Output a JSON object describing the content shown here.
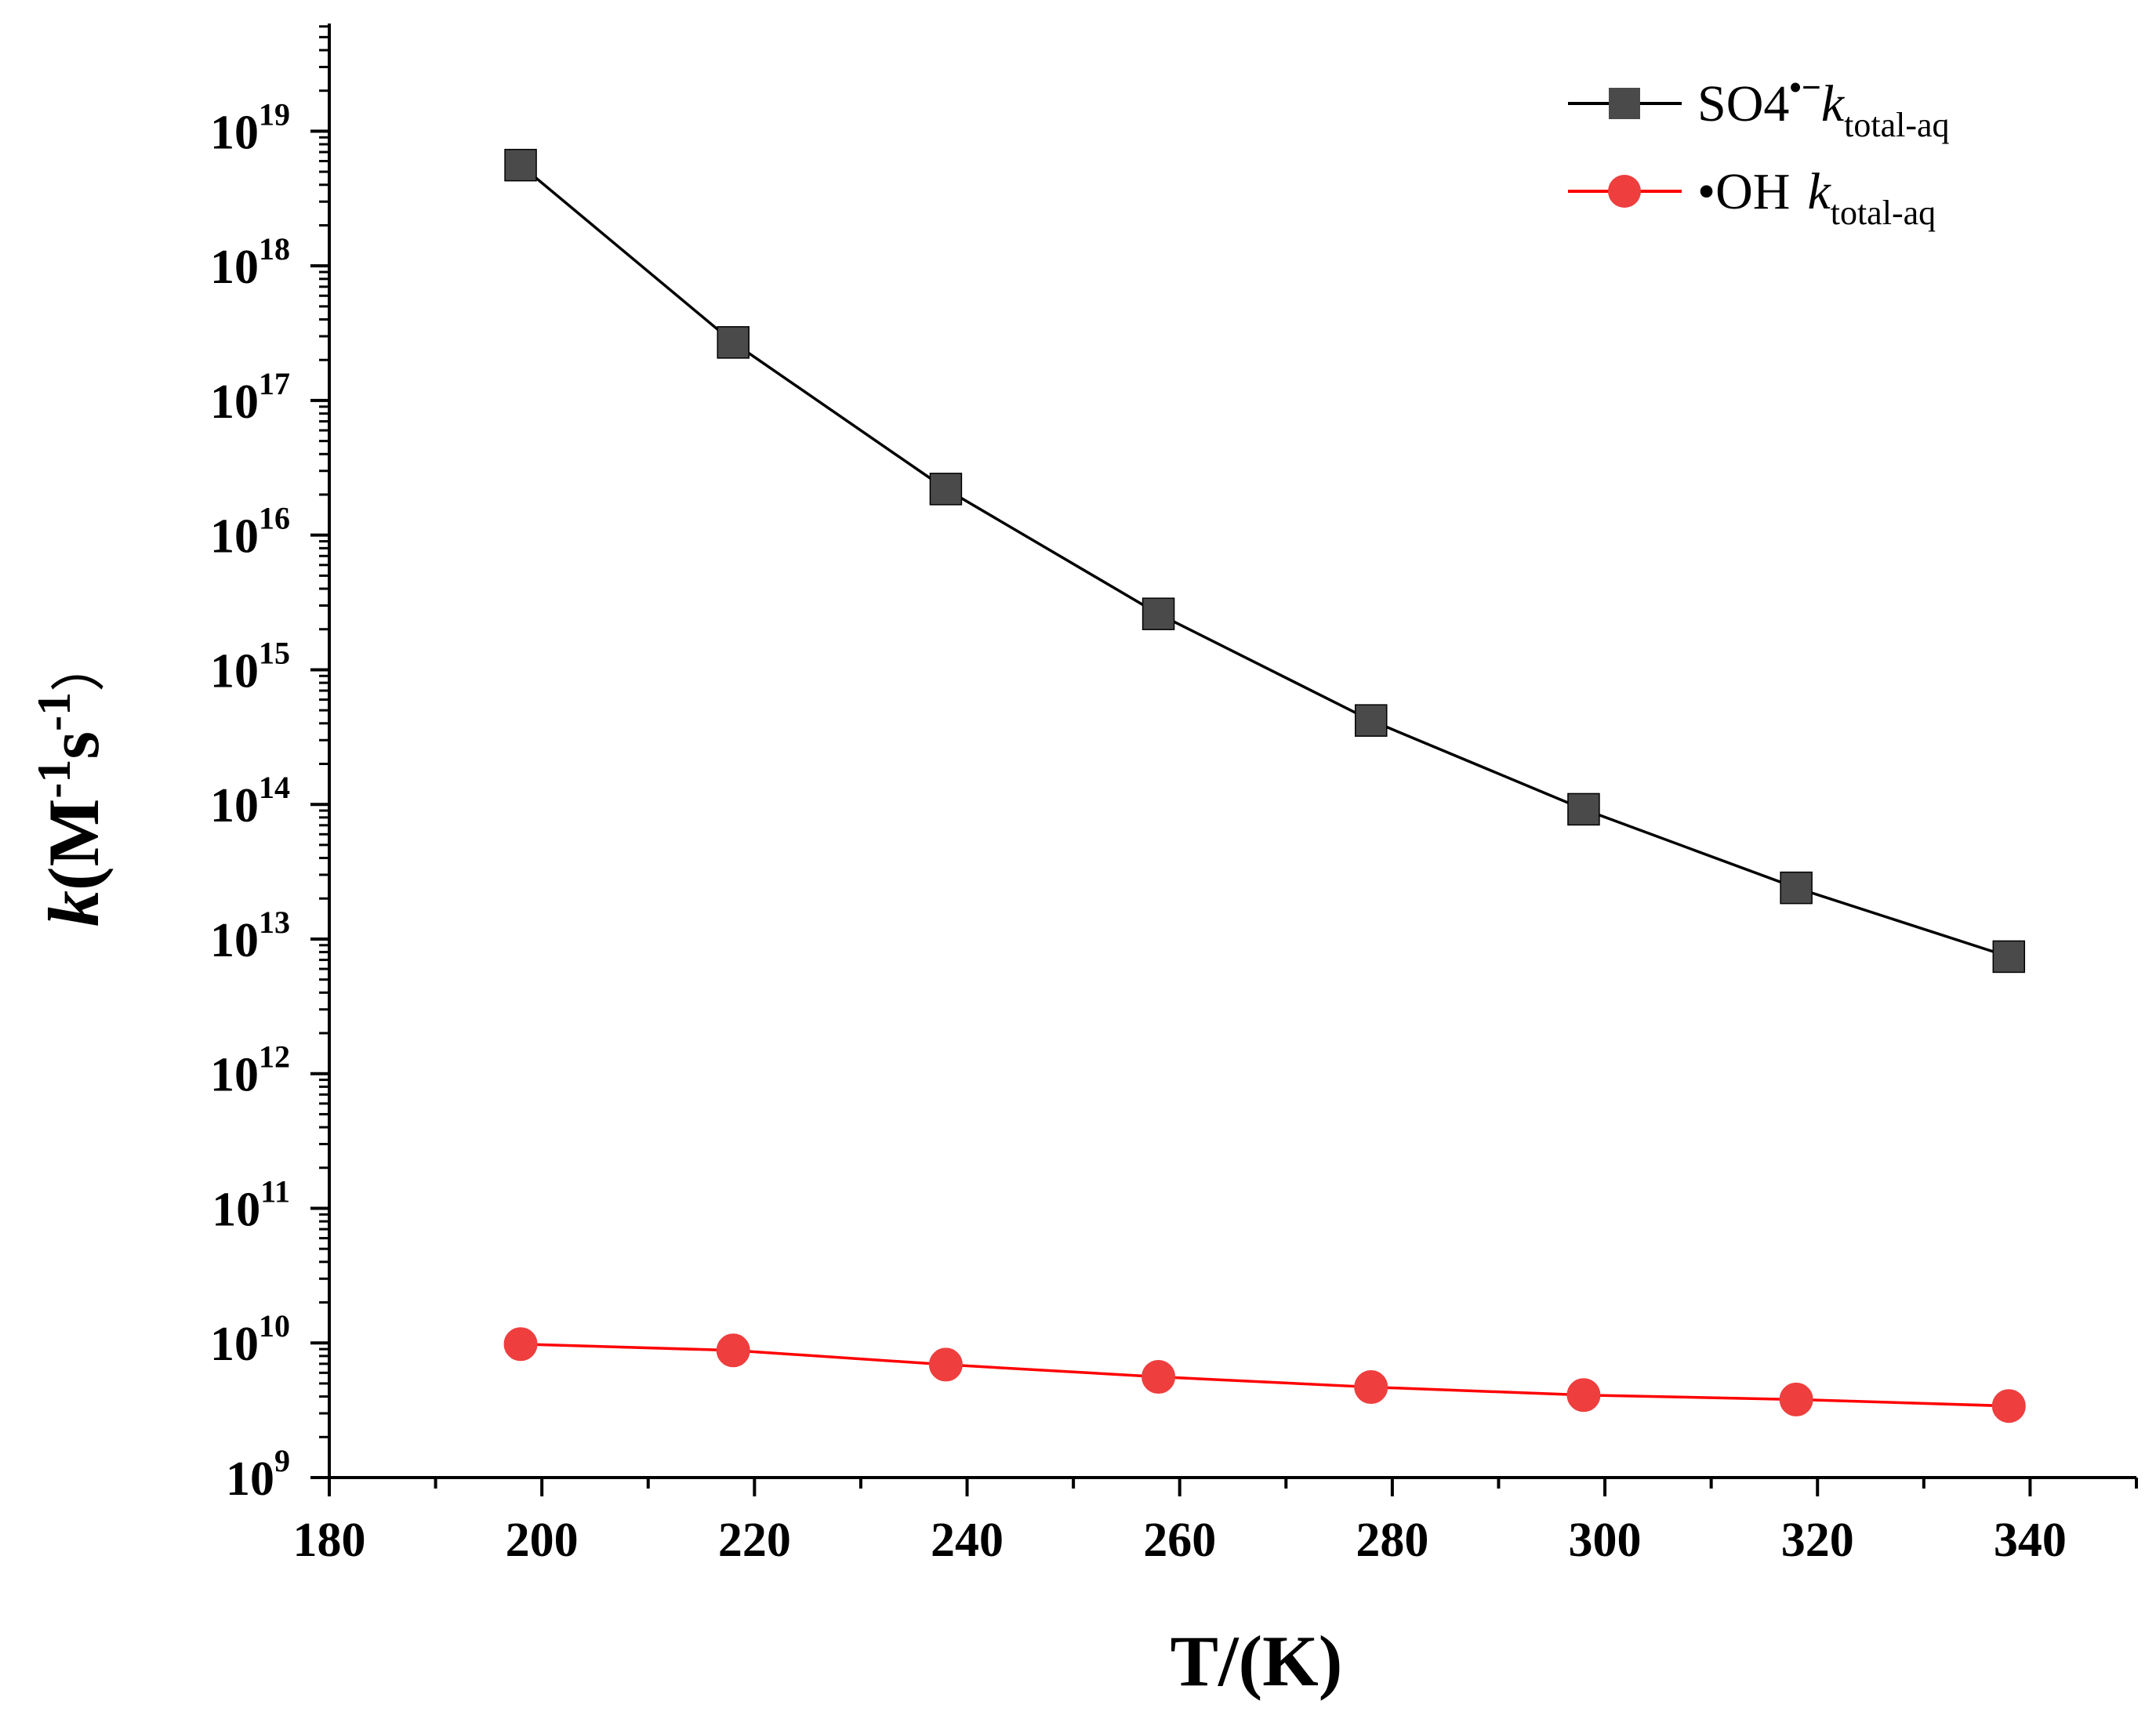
{
  "chart_data": {
    "type": "line",
    "xlabel": "T/(K)",
    "ylabel": {
      "prefix": "k",
      "unit_open": "(M",
      "sup1": "-1",
      "unit_s": "s",
      "sup2": "-1",
      "unit_close": "）"
    },
    "xlim": [
      180,
      350
    ],
    "ylim_log10": [
      9,
      19.8
    ],
    "yscale": "log",
    "x_ticks": [
      180,
      200,
      220,
      240,
      260,
      280,
      300,
      320,
      340
    ],
    "y_ticks": [
      {
        "base": "10",
        "exp": "9",
        "value": 9
      },
      {
        "base": "10",
        "exp": "10",
        "value": 10
      },
      {
        "base": "10",
        "exp": "11",
        "value": 11
      },
      {
        "base": "10",
        "exp": "12",
        "value": 12
      },
      {
        "base": "10",
        "exp": "13",
        "value": 13
      },
      {
        "base": "10",
        "exp": "14",
        "value": 14
      },
      {
        "base": "10",
        "exp": "15",
        "value": 15
      },
      {
        "base": "10",
        "exp": "16",
        "value": 16
      },
      {
        "base": "10",
        "exp": "17",
        "value": 17
      },
      {
        "base": "10",
        "exp": "18",
        "value": 18
      },
      {
        "base": "10",
        "exp": "19",
        "value": 19
      }
    ],
    "x": [
      198,
      218,
      238,
      258,
      278,
      298,
      318,
      338
    ],
    "series": [
      {
        "name": "SO4•⁻ k_total-aq",
        "legend_main": "SO4",
        "legend_sup": "•−",
        "legend_k": "k",
        "legend_sub": "total-aq",
        "color": "#000000",
        "marker_color": "#4a4a4a",
        "marker": "square",
        "values": [
          5.6e+18,
          2.7e+17,
          2.2e+16,
          2600000000000000.0,
          420000000000000.0,
          92000000000000.0,
          24000000000000.0,
          7400000000000.0
        ]
      },
      {
        "name": "•OH k_total-aq",
        "legend_main": "•OH",
        "legend_sup": "",
        "legend_k": "k",
        "legend_sub": "total-aq",
        "color": "#ff0000",
        "marker_color": "#ee3e3e",
        "marker": "circle",
        "values": [
          9800000000.0,
          8800000000.0,
          6900000000.0,
          5600000000.0,
          4700000000.0,
          4100000000.0,
          3800000000.0,
          3400000000.0
        ]
      }
    ],
    "legend_position": "top-right"
  }
}
